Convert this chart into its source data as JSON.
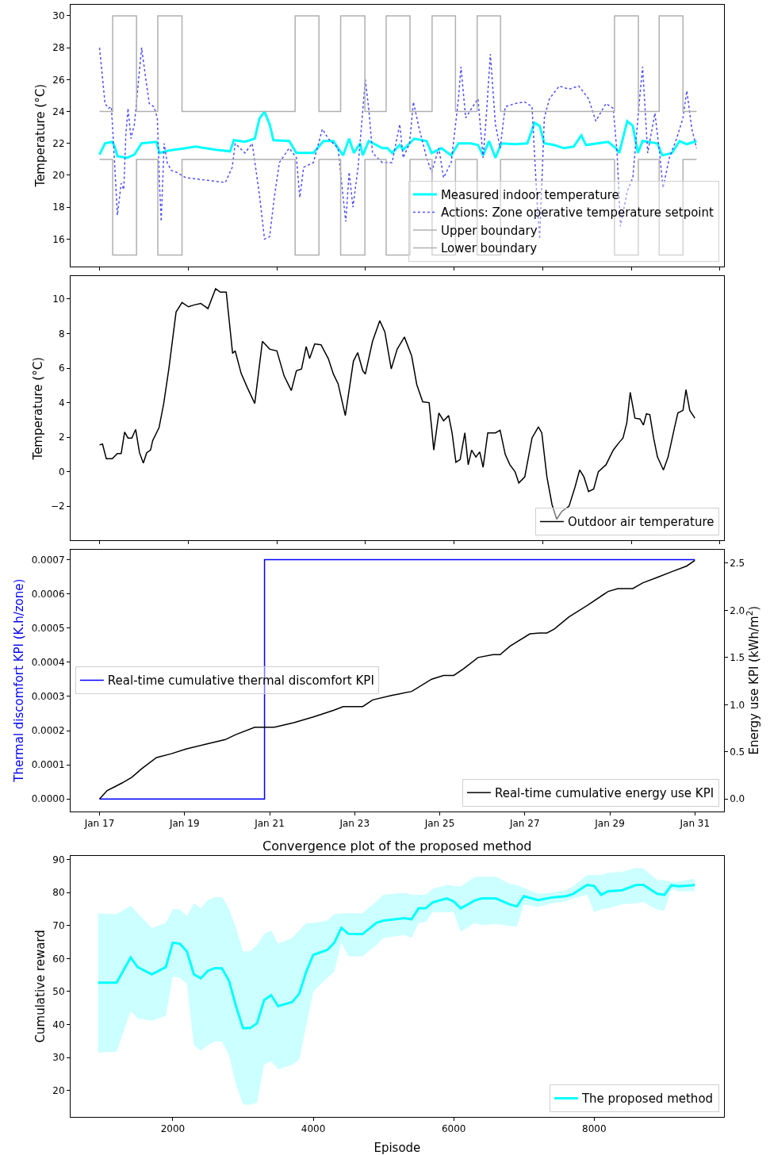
{
  "chart_data": [
    {
      "type": "line",
      "ylabel": "Temperature (°C)",
      "xlim": [
        "--01-16T07:41",
        "--01-31T16:19"
      ],
      "ylim": [
        14.3,
        30.7
      ],
      "xticks": [
        {
          "value": "--01-17",
          "label": null
        },
        {
          "value": "--01-19T01:55",
          "label": null
        },
        {
          "value": "--01-21T04:05",
          "label": null
        },
        {
          "value": "--01-23T06:00",
          "label": null
        },
        {
          "value": "--01-25T08:10",
          "label": null
        },
        {
          "value": "--01-27T10:05",
          "label": null
        },
        {
          "value": "--01-29T12:14",
          "label": null
        },
        {
          "value": "--01-31T13:55",
          "label": null
        }
      ],
      "yticks": [
        16,
        18,
        20,
        22,
        24,
        26,
        28,
        30
      ],
      "tick_labels": "y",
      "legend": "bottom right",
      "marker": "none",
      "series": [
        {
          "name": "Measured indoor temperature",
          "color": "#00ffff",
          "type": "line",
          "x": [
            "--01-17T00:00",
            "--01-17T03:07",
            "--01-17T07:12",
            "--01-17T08:53",
            "--01-17T10:05",
            "--01-17T15:36",
            "--01-17T19:41",
            "--01-17T23:46",
            "--01-18T08:10",
            "--01-18T09:50",
            "--01-18T15:07",
            "--01-19T00:43",
            "--01-19T06:14",
            "--01-19T17:31",
            "--01-20T01:41",
            "--01-20T03:50",
            "--01-20T10:05",
            "--01-20T15:36",
            "--01-20T18:14",
            "--01-20T21:07",
            "--01-21T00:00",
            "--01-21T02:10",
            "--01-21T11:02",
            "--01-21T15:07",
            "--01-22T00:43",
            "--01-22T06:29",
            "--01-22T12:00",
            "--01-22T14:38",
            "--01-22T17:31",
            "--01-22T20:53",
            "--01-22T23:31",
            "--01-23T03:07",
            "--01-23T04:34",
            "--01-23T07:55",
            "--01-23T15:36",
            "--01-23T18:29",
            "--01-23T21:07",
            "--01-24T01:26",
            "--01-24T03:22",
            "--01-24T06:58",
            "--01-24T09:36",
            "--01-24T16:34",
            "--01-24T19:26",
            "--01-25T00:58",
            "--01-25T06:29",
            "--01-25T10:34",
            "--01-25T17:31",
            "--01-25T21:36",
            "--01-26T00:29",
            "--01-26T03:50",
            "--01-26T07:26",
            "--01-26T10:48",
            "--01-26T18:29",
            "--01-27T01:26",
            "--01-27T05:31",
            "--01-27T08:24",
            "--01-27T11:02",
            "--01-27T16:34",
            "--01-27T22:05",
            "--01-28T03:36",
            "--01-28T07:55",
            "--01-28T10:34",
            "--01-28T23:02",
            "--01-29T03:22",
            "--01-29T05:17",
            "--01-29T09:50",
            "--01-29T12:58",
            "--01-29T15:50",
            "--01-29T18:29",
            "--01-30T02:53",
            "--01-30T05:31",
            "--01-30T11:02",
            "--01-30T15:22",
            "--01-30T19:26",
            "--01-31T00:58"
          ],
          "values": [
            21.3,
            22.0,
            22.1,
            21.7,
            21.2,
            21.1,
            21.3,
            22.0,
            22.1,
            21.4,
            21.55,
            21.7,
            21.8,
            21.6,
            21.5,
            22.2,
            22.1,
            22.3,
            23.55,
            24.0,
            23.2,
            22.2,
            22.15,
            21.4,
            21.4,
            22.15,
            22.15,
            21.7,
            21.25,
            22.3,
            21.4,
            22.0,
            21.25,
            22.15,
            21.7,
            21.7,
            21.4,
            21.9,
            21.6,
            22.0,
            22.3,
            22.15,
            21.4,
            21.7,
            21.25,
            22.0,
            22.0,
            21.9,
            21.25,
            22.15,
            21.1,
            22.0,
            21.95,
            22.0,
            23.3,
            23.1,
            22.0,
            21.9,
            21.7,
            21.8,
            22.5,
            21.9,
            22.1,
            21.7,
            21.4,
            23.4,
            23.1,
            21.4,
            22.15,
            22.0,
            21.25,
            21.4,
            22.15,
            21.95,
            22.15
          ]
        },
        {
          "name": "Actions: Zone operative temperature setpoint",
          "color": "#4d4dff",
          "type": "line",
          "line_style": "dotted",
          "x": [
            "--01-17T00:00",
            "--01-17T03:07",
            "--01-17T05:02",
            "--01-17T06:43",
            "--01-17T08:38",
            "--01-17T10:05",
            "--01-17T12:14",
            "--01-17T13:41",
            "--01-17T14:53",
            "--01-17T16:05",
            "--01-17T17:46",
            "--01-17T19:41",
            "--01-17T22:34",
            "--01-17T23:46",
            "--01-18T02:10",
            "--01-18T04:05",
            "--01-18T06:43",
            "--01-18T08:38",
            "--01-18T09:50",
            "--01-18T10:48",
            "--01-18T12:29",
            "--01-18T14:10",
            "--01-18T16:34",
            "--01-18T19:12",
            "--01-19T00:43",
            "--01-19T11:46",
            "--01-19T23:02",
            "--01-20T02:53",
            "--01-20T04:34",
            "--01-20T10:05",
            "--01-20T14:10",
            "--01-20T18:14",
            "--01-20T21:07",
            "--01-21T00:00",
            "--01-21T02:38",
            "--01-21T05:31",
            "--01-21T11:02",
            "--01-21T15:07",
            "--01-21T17:02",
            "--01-21T19:12",
            "--01-22T00:43",
            "--01-22T05:46",
            "--01-22T09:07",
            "--01-22T14:38",
            "--01-22T17:31",
            "--01-22T18:58",
            "--01-22T20:53",
            "--01-22T23:02",
            "--01-23T01:55",
            "--01-23T06:00",
            "--01-23T07:55",
            "--01-23T10:05",
            "--01-23T15:36",
            "--01-23T21:07",
            "--01-24T01:26",
            "--01-24T03:22",
            "--01-24T06:58",
            "--01-24T09:07",
            "--01-24T12:29",
            "--01-24T16:34",
            "--01-24T19:26",
            "--01-24T23:31",
            "--01-25T02:10",
            "--01-25T06:29",
            "--01-25T10:34",
            "--01-25T12:00",
            "--01-25T14:38",
            "--01-25T18:00",
            "--01-25T21:36",
            "--01-26T00:29",
            "--01-26T02:24",
            "--01-26T04:34",
            "--01-26T07:26",
            "--01-26T10:05",
            "--01-26T12:58",
            "--01-26T18:29",
            "--01-27T00:00",
            "--01-27T04:05",
            "--01-27T06:58",
            "--01-27T08:24",
            "--01-27T11:02",
            "--01-27T13:55",
            "--01-27T19:26",
            "--01-28T00:58",
            "--01-28T06:29",
            "--01-28T12:00",
            "--01-28T16:05",
            "--01-28T21:50",
            "--01-29T01:55",
            "--01-29T04:05",
            "--01-29T06:00",
            "--01-29T09:50",
            "--01-29T12:58",
            "--01-29T17:02",
            "--01-29T18:29",
            "--01-29T21:22",
            "--01-30T01:26",
            "--01-30T04:05",
            "--01-30T06:00",
            "--01-30T09:36",
            "--01-30T13:41",
            "--01-30T17:17",
            "--01-30T19:26",
            "--01-30T22:19",
            "--01-31T00:58"
          ],
          "values": [
            28.0,
            24.5,
            24.2,
            24.3,
            20.5,
            17.5,
            19.5,
            19.1,
            22.6,
            24.2,
            22.3,
            23.2,
            26.6,
            28.0,
            26.0,
            24.5,
            24.3,
            23.6,
            19.5,
            17.1,
            22.0,
            20.8,
            20.3,
            20.2,
            19.85,
            19.7,
            19.55,
            20.5,
            22.0,
            21.4,
            22.0,
            18.8,
            16.0,
            16.15,
            18.6,
            20.8,
            21.7,
            21.1,
            18.6,
            20.5,
            20.8,
            22.9,
            22.3,
            21.7,
            18.6,
            17.1,
            20.2,
            18.0,
            20.5,
            26.0,
            24.2,
            21.4,
            20.8,
            20.8,
            23.2,
            21.1,
            22.0,
            24.6,
            22.9,
            21.1,
            20.2,
            21.7,
            19.85,
            20.8,
            24.8,
            26.8,
            23.6,
            24.2,
            24.8,
            21.1,
            23.9,
            27.6,
            23.2,
            21.7,
            24.3,
            24.5,
            24.6,
            24.3,
            18.3,
            16.0,
            23.6,
            24.8,
            25.6,
            25.4,
            25.6,
            24.8,
            23.4,
            24.5,
            24.2,
            21.4,
            16.8,
            19.0,
            19.85,
            25.1,
            26.8,
            21.4,
            23.9,
            21.4,
            19.2,
            21.1,
            22.3,
            23.6,
            25.3,
            22.9,
            21.7
          ]
        },
        {
          "name": "Upper boundary",
          "color": "#b0b0b0",
          "type": "step",
          "x": [
            "--01-17T00:00",
            "--01-17T07:26",
            "--01-17T20:53",
            "--01-18T08:53",
            "--01-18T22:34",
            "--01-21T14:24",
            "--01-22T03:50",
            "--01-22T16:05",
            "--01-23T05:46",
            "--01-23T17:46",
            "--01-24T07:12",
            "--01-24T19:41",
            "--01-25T08:53",
            "--01-25T21:07",
            "--01-26T10:19",
            "--01-29T02:38",
            "--01-29T16:05",
            "--01-30T03:50",
            "--01-30T17:17",
            "--01-31T00:58"
          ],
          "values": [
            24,
            30,
            24,
            30,
            24,
            30,
            24,
            30,
            24,
            30,
            24,
            30,
            24,
            30,
            24,
            30,
            24,
            30,
            24,
            24
          ]
        },
        {
          "name": "Lower boundary",
          "color": "#b0b0b0",
          "type": "step",
          "x": [
            "--01-17T00:00",
            "--01-17T07:26",
            "--01-17T20:53",
            "--01-18T08:53",
            "--01-18T22:34",
            "--01-21T14:24",
            "--01-22T03:50",
            "--01-22T16:05",
            "--01-23T05:46",
            "--01-23T17:46",
            "--01-24T07:12",
            "--01-24T19:41",
            "--01-25T08:53",
            "--01-25T21:07",
            "--01-26T10:19",
            "--01-29T02:38",
            "--01-29T16:05",
            "--01-30T03:50",
            "--01-30T17:17",
            "--01-31T00:58"
          ],
          "values": [
            21,
            15,
            21,
            15,
            21,
            15,
            21,
            15,
            21,
            15,
            21,
            15,
            21,
            15,
            21,
            15,
            21,
            15,
            21,
            21
          ]
        }
      ]
    },
    {
      "type": "line",
      "ylabel": "Temperature (°C)",
      "xlim": [
        "--01-16T07:41",
        "--01-31T16:19"
      ],
      "ylim": [
        -3.97,
        11.31
      ],
      "xticks": [
        {
          "value": "--01-17",
          "label": null
        },
        {
          "value": "--01-19T01:55",
          "label": null
        },
        {
          "value": "--01-21T04:05",
          "label": null
        },
        {
          "value": "--01-23T06:00",
          "label": null
        },
        {
          "value": "--01-25T08:10",
          "label": null
        },
        {
          "value": "--01-27T10:05",
          "label": null
        },
        {
          "value": "--01-29T12:14",
          "label": null
        },
        {
          "value": "--01-31T13:55",
          "label": null
        }
      ],
      "yticks": [
        {
          "value": -2,
          "label": "−2"
        },
        0,
        2,
        4,
        6,
        8,
        10
      ],
      "tick_labels": "y",
      "legend": "bottom right",
      "marker": "none",
      "series": [
        {
          "name": "Outdoor air temperature",
          "color": "#000000",
          "x": [
            "--01-17T00:00",
            "--01-17T01:41",
            "--01-17T03:50",
            "--01-17T07:12",
            "--01-17T10:05",
            "--01-17T12:14",
            "--01-17T14:10",
            "--01-17T16:05",
            "--01-17T18:14",
            "--01-17T20:24",
            "--01-17T22:34",
            "--01-18T00:43",
            "--01-18T02:38",
            "--01-18T04:48",
            "--01-18T06:00",
            "--01-18T09:36",
            "--01-18T12:14",
            "--01-18T15:07",
            "--01-18T19:12",
            "--01-18T22:34",
            "--01-19T02:10",
            "--01-19T05:02",
            "--01-19T09:07",
            "--01-19T13:12",
            "--01-19T17:31",
            "--01-19T20:10",
            "--01-19T23:31",
            "--01-20T03:07",
            "--01-20T04:34",
            "--01-20T07:55",
            "--01-20T11:31",
            "--01-20T15:36",
            "--01-20T19:55",
            "--01-21T00:00",
            "--01-21T04:05",
            "--01-21T08:10",
            "--01-21T12:14",
            "--01-21T15:07",
            "--01-21T18:00",
            "--01-21T20:38",
            "--01-21T22:34",
            "--01-22T01:26",
            "--01-22T05:02",
            "--01-22T09:07",
            "--01-22T12:00",
            "--01-22T14:38",
            "--01-22T18:43",
            "--01-22T23:17",
            "--01-23T01:41",
            "--01-23T04:34",
            "--01-23T06:00",
            "--01-23T10:05",
            "--01-23T14:10",
            "--01-23T17:02",
            "--01-23T20:38",
            "--01-24T00:00",
            "--01-24T04:05",
            "--01-24T08:10",
            "--01-24T11:02",
            "--01-24T14:24",
            "--01-24T18:00",
            "--01-24T19:26",
            "--01-24T20:38",
            "--01-24T23:31",
            "--01-25T02:10",
            "--01-25T05:02",
            "--01-25T06:58",
            "--01-25T09:07",
            "--01-25T11:31",
            "--01-25T14:10",
            "--01-25T16:05",
            "--01-25T18:00",
            "--01-25T20:24",
            "--01-25T22:34",
            "--01-26T00:29",
            "--01-26T03:07",
            "--01-26T07:26",
            "--01-26T10:05",
            "--01-26T12:58",
            "--01-26T15:36",
            "--01-26T18:29",
            "--01-26T20:38",
            "--01-27T00:00",
            "--01-27T04:05",
            "--01-27T07:41",
            "--01-27T09:36",
            "--01-27T12:29",
            "--01-27T15:22",
            "--01-27T18:00",
            "--01-27T20:53",
            "--01-28T00:58",
            "--01-28T04:19",
            "--01-28T06:58",
            "--01-28T09:22",
            "--01-28T12:00",
            "--01-28T14:53",
            "--01-28T17:31",
            "--01-28T21:50",
            "--01-29T01:55",
            "--01-29T05:17",
            "--01-29T07:26",
            "--01-29T09:36",
            "--01-29T11:31",
            "--01-29T14:10",
            "--01-29T17:02",
            "--01-29T18:58",
            "--01-29T20:38",
            "--01-29T22:34",
            "--01-30T00:43",
            "--01-30T02:53",
            "--01-30T06:14",
            "--01-30T08:53",
            "--01-30T12:29",
            "--01-30T14:24",
            "--01-30T17:17",
            "--01-30T18:58",
            "--01-30T21:07",
            "--01-31T00:00"
          ],
          "values": [
            1.55,
            1.6,
            0.75,
            0.75,
            1.05,
            1.05,
            2.3,
            1.95,
            1.95,
            2.45,
            1.1,
            0.5,
            1.1,
            1.25,
            1.8,
            2.55,
            3.95,
            5.95,
            9.25,
            9.8,
            9.55,
            9.65,
            9.75,
            9.45,
            10.6,
            10.4,
            10.4,
            6.85,
            7.0,
            5.7,
            4.85,
            3.95,
            7.55,
            7.1,
            7.0,
            5.55,
            4.7,
            5.85,
            5.95,
            7.25,
            6.55,
            7.4,
            7.35,
            6.55,
            5.65,
            5.1,
            3.25,
            6.4,
            6.9,
            5.85,
            5.65,
            7.55,
            8.75,
            8.1,
            5.95,
            7.1,
            7.8,
            6.7,
            5.05,
            4.05,
            4.0,
            2.55,
            1.25,
            3.4,
            2.95,
            3.25,
            2.25,
            0.55,
            0.7,
            2.25,
            0.4,
            1.25,
            0.85,
            1.15,
            0.25,
            2.25,
            2.25,
            2.4,
            1.0,
            0.4,
            0.0,
            -0.65,
            -0.3,
            1.95,
            2.6,
            2.25,
            -0.3,
            -1.9,
            -2.75,
            -2.3,
            -2.0,
            -0.9,
            0.1,
            -0.3,
            -1.15,
            -1.0,
            0.0,
            0.4,
            1.25,
            1.7,
            1.95,
            2.85,
            4.6,
            3.1,
            3.05,
            2.7,
            3.35,
            3.3,
            1.95,
            0.85,
            0.1,
            0.85,
            2.55,
            3.4,
            3.55,
            4.75,
            3.55,
            3.1
          ]
        }
      ]
    },
    {
      "type": "line",
      "ylabel": "Thermal discomfort KPI (K.h/zone)",
      "y2label": "Energy use KPI (kWh/m$^{2}$)",
      "xlim": [
        "--01-16T07:41",
        "--01-31T16:19"
      ],
      "ylim": [
        -3.6e-05,
        0.00073
      ],
      "y2lim": [
        -0.13,
        2.645
      ],
      "xticks": [
        {
          "value": "--01-17",
          "label": "Jan 17"
        },
        {
          "value": "--01-19",
          "label": "Jan 19"
        },
        {
          "value": "--01-21",
          "label": "Jan 21"
        },
        {
          "value": "--01-23",
          "label": "Jan 23"
        },
        {
          "value": "--01-25",
          "label": "Jan 25"
        },
        {
          "value": "--01-27",
          "label": "Jan 27"
        },
        {
          "value": "--01-29",
          "label": "Jan 29"
        },
        {
          "value": "--01-31",
          "label": "Jan 31"
        }
      ],
      "yticks": [
        {
          "value": 0,
          "label": "0.0000"
        },
        {
          "value": 0.0001,
          "label": "0.0001"
        },
        {
          "value": 0.0002,
          "label": "0.0002"
        },
        {
          "value": 0.0003,
          "label": "0.0003"
        },
        {
          "value": 0.0004,
          "label": "0.0004"
        },
        {
          "value": 0.0005,
          "label": "0.0005"
        },
        {
          "value": 0.0006,
          "label": "0.0006"
        },
        {
          "value": 0.0007,
          "label": "0.0007"
        }
      ],
      "y2ticks": [
        {
          "value": 0,
          "label": "0.0"
        },
        0.5,
        {
          "value": 1,
          "label": "1.0"
        },
        1.5,
        {
          "value": 2,
          "label": "2.0"
        },
        2.5
      ],
      "legend": "left",
      "marker": "none",
      "series": [
        {
          "name": "Real-time cumulative thermal discomfort KPI",
          "color": "#0000ff",
          "type": "step",
          "x": [
            "--01-17T00:00",
            "--01-20T21:07",
            "--01-31T00:00"
          ],
          "values": [
            0,
            0.0007,
            0.0007
          ]
        },
        {
          "name": "Real-time cumulative energy use KPI",
          "color": "#000000",
          "type": "line",
          "axis": "y2",
          "x": [
            "--01-17T00:00",
            "--01-17T04:19",
            "--01-17T08:38",
            "--01-17T12:43",
            "--01-17T18:14",
            "--01-17T23:46",
            "--01-18T08:10",
            "--01-18T16:34",
            "--01-19T00:43",
            "--01-19T11:46",
            "--01-19T23:02",
            "--01-20T04:34",
            "--01-20T15:36",
            "--01-20T21:07",
            "--01-21T02:38",
            "--01-21T13:41",
            "--01-22T00:43",
            "--01-22T12:00",
            "--01-22T17:31",
            "--01-23T04:34",
            "--01-23T10:05",
            "--01-23T21:07",
            "--01-24T08:10",
            "--01-24T19:26",
            "--01-25T02:10",
            "--01-25T07:55",
            "--01-25T13:26",
            "--01-25T21:36",
            "--01-26T06:00",
            "--01-26T10:05",
            "--01-26T15:36",
            "--01-27T02:53",
            "--01-27T08:24",
            "--01-27T12:29",
            "--01-27T16:34",
            "--01-28T00:58",
            "--01-28T12:00",
            "--01-28T23:02",
            "--01-29T04:34",
            "--01-29T12:58",
            "--01-29T18:29",
            "--01-30T02:53",
            "--01-30T11:02",
            "--01-30T19:26",
            "--01-31T00:00"
          ],
          "values": [
            0,
            0.09,
            0.13,
            0.17,
            0.23,
            0.32,
            0.44,
            0.48,
            0.53,
            0.58,
            0.63,
            0.68,
            0.76,
            0.76,
            0.76,
            0.81,
            0.87,
            0.94,
            0.98,
            0.98,
            1.05,
            1.1,
            1.14,
            1.27,
            1.31,
            1.31,
            1.38,
            1.5,
            1.53,
            1.53,
            1.62,
            1.75,
            1.76,
            1.76,
            1.8,
            1.93,
            2.06,
            2.2,
            2.23,
            2.23,
            2.29,
            2.35,
            2.41,
            2.47,
            2.53
          ]
        }
      ]
    },
    {
      "type": "line",
      "title": "Convergence plot of the proposed method",
      "xlabel": "Episode",
      "ylabel": "Cumulative reward",
      "xlim": [
        545,
        9846
      ],
      "ylim": [
        12,
        91.2
      ],
      "xticks": [
        2000,
        4000,
        6000,
        8000
      ],
      "yticks": [
        20,
        30,
        40,
        50,
        60,
        70,
        80,
        90
      ],
      "legend": "bottom right",
      "marker": "none",
      "x": [
        937,
        1200,
        1400,
        1500,
        1700,
        1900,
        2000,
        2100,
        2200,
        2300,
        2400,
        2500,
        2600,
        2700,
        2800,
        2900,
        3000,
        3100,
        3200,
        3300,
        3400,
        3500,
        3700,
        3800,
        3900,
        4000,
        4200,
        4300,
        4400,
        4500,
        4700,
        4900,
        5000,
        5300,
        5400,
        5500,
        5600,
        5700,
        5900,
        6000,
        6100,
        6300,
        6400,
        6600,
        6800,
        6900,
        7000,
        7200,
        7400,
        7600,
        7700,
        7900,
        8000,
        8100,
        8200,
        8400,
        8600,
        8700,
        8900,
        9000,
        9100,
        9200,
        9400,
        9433
      ],
      "series": [
        {
          "name": "The proposed method",
          "color": "#00ffff",
          "values": [
            52.7,
            52.7,
            60.3,
            57.4,
            55.2,
            57.4,
            64.8,
            64.5,
            62.2,
            55.2,
            54.0,
            56.3,
            57.1,
            57.0,
            53.3,
            45.6,
            38.9,
            38.9,
            40.4,
            47.4,
            48.9,
            45.6,
            46.8,
            49.3,
            56.0,
            61.1,
            62.6,
            64.8,
            69.3,
            67.5,
            67.4,
            70.8,
            71.5,
            72.2,
            71.9,
            75.2,
            75.2,
            77.0,
            78.2,
            77.3,
            75.2,
            77.6,
            78.2,
            78.2,
            76.4,
            75.8,
            78.9,
            77.7,
            78.5,
            78.9,
            79.6,
            82.3,
            82.0,
            79.3,
            80.4,
            80.7,
            82.3,
            82.3,
            79.6,
            79.3,
            82.2,
            81.9,
            82.2,
            82.3
          ],
          "lower": [
            31.5,
            31.8,
            44.1,
            41.9,
            41.2,
            42.6,
            54.5,
            54.2,
            52.3,
            33.8,
            32.0,
            33.8,
            34.9,
            34.8,
            30.8,
            21.9,
            15.7,
            15.7,
            16.3,
            27.8,
            28.9,
            26.4,
            27.8,
            29.3,
            39.7,
            50.0,
            54.2,
            56.0,
            64.8,
            60.7,
            60.7,
            64.1,
            66.3,
            67.1,
            66.3,
            70.8,
            71.1,
            74.0,
            74.0,
            74.0,
            68.1,
            70.8,
            70.1,
            70.5,
            69.9,
            69.7,
            76.4,
            75.6,
            76.7,
            77.4,
            78.2,
            79.3,
            74.0,
            74.9,
            75.2,
            76.4,
            76.7,
            77.0,
            74.8,
            74.5,
            81.1,
            80.4,
            80.4,
            80.5
          ],
          "upper": [
            73.7,
            73.4,
            76.0,
            73.7,
            69.3,
            70.8,
            74.9,
            74.9,
            72.8,
            76.7,
            75.2,
            77.7,
            78.6,
            78.6,
            75.2,
            69.3,
            62.2,
            62.2,
            64.1,
            67.4,
            68.5,
            64.5,
            66.3,
            68.5,
            70.8,
            70.8,
            71.5,
            73.4,
            73.7,
            73.7,
            73.7,
            77.4,
            79.3,
            79.9,
            79.3,
            79.3,
            79.3,
            81.1,
            82.3,
            82.0,
            81.9,
            84.7,
            84.8,
            84.8,
            82.6,
            82.3,
            81.4,
            79.6,
            79.9,
            80.8,
            81.9,
            85.3,
            85.3,
            85.3,
            86.0,
            86.3,
            87.5,
            87.3,
            83.8,
            83.7,
            83.3,
            83.3,
            84.1,
            84.1
          ]
        }
      ]
    }
  ]
}
